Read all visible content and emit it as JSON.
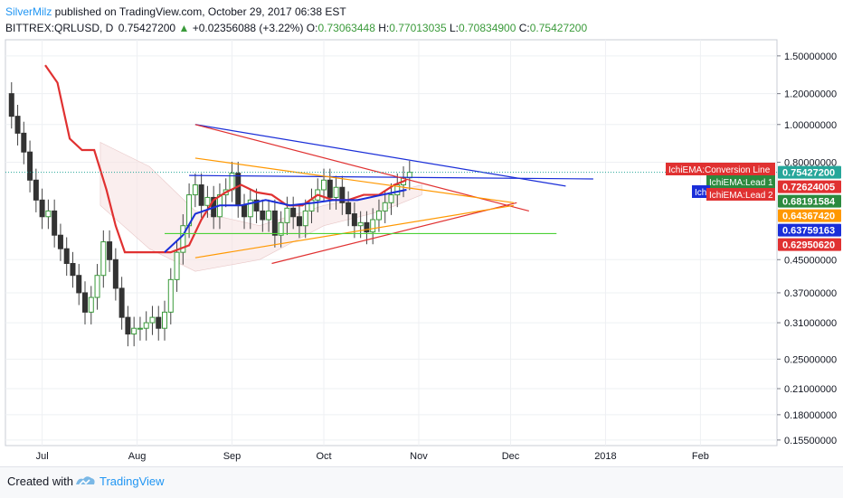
{
  "header": {
    "author": "SilverMilz",
    "published_text": " published on TradingView.com, October 29, 2017 06:38 EST"
  },
  "ohlc": {
    "symbol": "BITTREX:QRLUSD, D",
    "last": "0.75427200",
    "change": "+0.02356088 (+3.22%)",
    "open_label": "O:",
    "open": "0.73063448",
    "high_label": "H:",
    "high": "0.77013035",
    "low_label": "L:",
    "low": "0.70834900",
    "close_label": "C:",
    "close": "0.75427200"
  },
  "footer": {
    "created_with": "Created with",
    "brand": "TradingView",
    "icon": "tradingview-logo-icon"
  },
  "colors": {
    "up": "#3a9a3a",
    "down": "#333333",
    "ichimoku_conversion": "#e03131",
    "lead1": "#2b8a3e",
    "lead2": "#e03131",
    "blue": "#1a2ed8",
    "orange": "#ff9800",
    "green_line": "#4cd137"
  },
  "chart_data": {
    "type": "candlestick",
    "symbol": "BITTREX:QRLUSD",
    "interval": "D",
    "y_scale": "log",
    "ylim": [
      0.15,
      1.65
    ],
    "x_range": [
      "2017-06-19",
      "2018-02-26"
    ],
    "x_ticks": [
      "Jul",
      "Aug",
      "Sep",
      "Oct",
      "Nov",
      "Dec",
      "2018",
      "Feb"
    ],
    "y_ticks": [
      "1.50000000",
      "1.20000000",
      "1.00000000",
      "0.80000000",
      "0.45000000",
      "0.37000000",
      "0.31000000",
      "0.25000000",
      "0.21000000",
      "0.18000000",
      "0.15500000"
    ],
    "price_labels": [
      {
        "text": "0.75427200",
        "value": 0.754272,
        "color": "#26a69a"
      },
      {
        "text": "0.72624005",
        "value": 0.72624005,
        "color": "#e03131"
      },
      {
        "text": "0.68191584",
        "value": 0.68191584,
        "color": "#2b8a3e"
      },
      {
        "text": "0.64367420",
        "value": 0.6436742,
        "color": "#ff9800"
      },
      {
        "text": "0.63759163",
        "value": 0.63759163,
        "color": "#1a2ed8"
      },
      {
        "text": "0.62950620",
        "value": 0.6295062,
        "color": "#e03131"
      }
    ],
    "indicator_tags": [
      {
        "text": "IchiEMA:Conversion Line",
        "value": 0.735,
        "color": "#e03131"
      },
      {
        "text": "IchiEMA:Lead 1",
        "value": 0.7,
        "color": "#2b8a3e"
      },
      {
        "text": "Ichi",
        "value": 0.665,
        "color": "#1a2ed8"
      },
      {
        "text": "IchiEMA:Lead 2",
        "value": 0.66,
        "color": "#e03131"
      }
    ],
    "close_series": [
      [
        "2017-06-19",
        1.2
      ],
      [
        "2017-06-21",
        1.05
      ],
      [
        "2017-06-23",
        0.95
      ],
      [
        "2017-06-25",
        0.85
      ],
      [
        "2017-06-27",
        0.72
      ],
      [
        "2017-06-29",
        0.64
      ],
      [
        "2017-07-01",
        0.58
      ],
      [
        "2017-07-03",
        0.6
      ],
      [
        "2017-07-05",
        0.52
      ],
      [
        "2017-07-07",
        0.48
      ],
      [
        "2017-07-09",
        0.44
      ],
      [
        "2017-07-11",
        0.41
      ],
      [
        "2017-07-13",
        0.37
      ],
      [
        "2017-07-15",
        0.33
      ],
      [
        "2017-07-17",
        0.36
      ],
      [
        "2017-07-19",
        0.41
      ],
      [
        "2017-07-21",
        0.5
      ],
      [
        "2017-07-23",
        0.45
      ],
      [
        "2017-07-25",
        0.38
      ],
      [
        "2017-07-27",
        0.32
      ],
      [
        "2017-07-29",
        0.29
      ],
      [
        "2017-07-31",
        0.3
      ],
      [
        "2017-08-02",
        0.3
      ],
      [
        "2017-08-04",
        0.31
      ],
      [
        "2017-08-06",
        0.32
      ],
      [
        "2017-08-08",
        0.3
      ],
      [
        "2017-08-10",
        0.33
      ],
      [
        "2017-08-12",
        0.4
      ],
      [
        "2017-08-14",
        0.47
      ],
      [
        "2017-08-16",
        0.55
      ],
      [
        "2017-08-18",
        0.66
      ],
      [
        "2017-08-20",
        0.7
      ],
      [
        "2017-08-22",
        0.62
      ],
      [
        "2017-08-24",
        0.65
      ],
      [
        "2017-08-26",
        0.58
      ],
      [
        "2017-08-28",
        0.66
      ],
      [
        "2017-08-30",
        0.68
      ],
      [
        "2017-09-01",
        0.75
      ],
      [
        "2017-09-03",
        0.62
      ],
      [
        "2017-09-05",
        0.58
      ],
      [
        "2017-09-07",
        0.64
      ],
      [
        "2017-09-09",
        0.6
      ],
      [
        "2017-09-11",
        0.57
      ],
      [
        "2017-09-13",
        0.6
      ],
      [
        "2017-09-15",
        0.52
      ],
      [
        "2017-09-17",
        0.56
      ],
      [
        "2017-09-19",
        0.61
      ],
      [
        "2017-09-21",
        0.58
      ],
      [
        "2017-09-23",
        0.55
      ],
      [
        "2017-09-25",
        0.6
      ],
      [
        "2017-09-27",
        0.64
      ],
      [
        "2017-09-29",
        0.68
      ],
      [
        "2017-10-01",
        0.72
      ],
      [
        "2017-10-03",
        0.65
      ],
      [
        "2017-10-05",
        0.69
      ],
      [
        "2017-10-07",
        0.63
      ],
      [
        "2017-10-09",
        0.59
      ],
      [
        "2017-10-11",
        0.55
      ],
      [
        "2017-10-13",
        0.56
      ],
      [
        "2017-10-15",
        0.53
      ],
      [
        "2017-10-17",
        0.57
      ],
      [
        "2017-10-19",
        0.6
      ],
      [
        "2017-10-21",
        0.63
      ],
      [
        "2017-10-23",
        0.66
      ],
      [
        "2017-10-25",
        0.7
      ],
      [
        "2017-10-27",
        0.73
      ],
      [
        "2017-10-29",
        0.754
      ]
    ],
    "conversion_line": [
      [
        "2017-07-02",
        1.42
      ],
      [
        "2017-07-06",
        1.28
      ],
      [
        "2017-07-10",
        0.92
      ],
      [
        "2017-07-14",
        0.86
      ],
      [
        "2017-07-18",
        0.86
      ],
      [
        "2017-07-22",
        0.68
      ],
      [
        "2017-07-25",
        0.55
      ],
      [
        "2017-07-28",
        0.47
      ],
      [
        "2017-08-01",
        0.47
      ],
      [
        "2017-08-07",
        0.47
      ],
      [
        "2017-08-12",
        0.47
      ],
      [
        "2017-08-18",
        0.49
      ],
      [
        "2017-08-22",
        0.57
      ],
      [
        "2017-08-26",
        0.64
      ],
      [
        "2017-08-30",
        0.67
      ],
      [
        "2017-09-04",
        0.7
      ],
      [
        "2017-09-09",
        0.67
      ],
      [
        "2017-09-14",
        0.66
      ],
      [
        "2017-09-19",
        0.62
      ],
      [
        "2017-09-24",
        0.62
      ],
      [
        "2017-09-29",
        0.66
      ],
      [
        "2017-10-04",
        0.64
      ],
      [
        "2017-10-09",
        0.64
      ],
      [
        "2017-10-14",
        0.66
      ],
      [
        "2017-10-19",
        0.66
      ],
      [
        "2017-10-24",
        0.7
      ],
      [
        "2017-10-28",
        0.72
      ]
    ],
    "base_line": [
      [
        "2017-08-10",
        0.47
      ],
      [
        "2017-08-16",
        0.52
      ],
      [
        "2017-08-20",
        0.59
      ],
      [
        "2017-08-28",
        0.62
      ],
      [
        "2017-09-04",
        0.62
      ],
      [
        "2017-09-12",
        0.64
      ],
      [
        "2017-09-20",
        0.62
      ],
      [
        "2017-09-28",
        0.63
      ],
      [
        "2017-10-04",
        0.64
      ],
      [
        "2017-10-12",
        0.64
      ],
      [
        "2017-10-20",
        0.66
      ],
      [
        "2017-10-24",
        0.67
      ],
      [
        "2017-10-28",
        0.68
      ]
    ],
    "trendlines": [
      {
        "name": "blue-upper",
        "color": "#1a2ed8",
        "from": [
          "2017-08-20",
          1.0
        ],
        "to": [
          "2017-12-19",
          0.695
        ]
      },
      {
        "name": "blue-horizontal",
        "color": "#1a2ed8",
        "from": [
          "2017-08-18",
          0.74
        ],
        "to": [
          "2017-12-28",
          0.725
        ]
      },
      {
        "name": "red-upper",
        "color": "#e03131",
        "from": [
          "2017-08-20",
          1.0
        ],
        "to": [
          "2017-12-07",
          0.6
        ]
      },
      {
        "name": "red-lower",
        "color": "#e03131",
        "from": [
          "2017-09-14",
          0.44
        ],
        "to": [
          "2017-12-03",
          0.63
        ]
      },
      {
        "name": "orange-upper",
        "color": "#ff9800",
        "from": [
          "2017-08-20",
          0.82
        ],
        "to": [
          "2017-12-02",
          0.63
        ]
      },
      {
        "name": "orange-lower",
        "color": "#ff9800",
        "from": [
          "2017-08-20",
          0.455
        ],
        "to": [
          "2017-12-02",
          0.62
        ]
      },
      {
        "name": "green-horizontal",
        "color": "#4cd137",
        "from": [
          "2017-08-10",
          0.525
        ],
        "to": [
          "2017-12-16",
          0.525
        ]
      }
    ]
  }
}
